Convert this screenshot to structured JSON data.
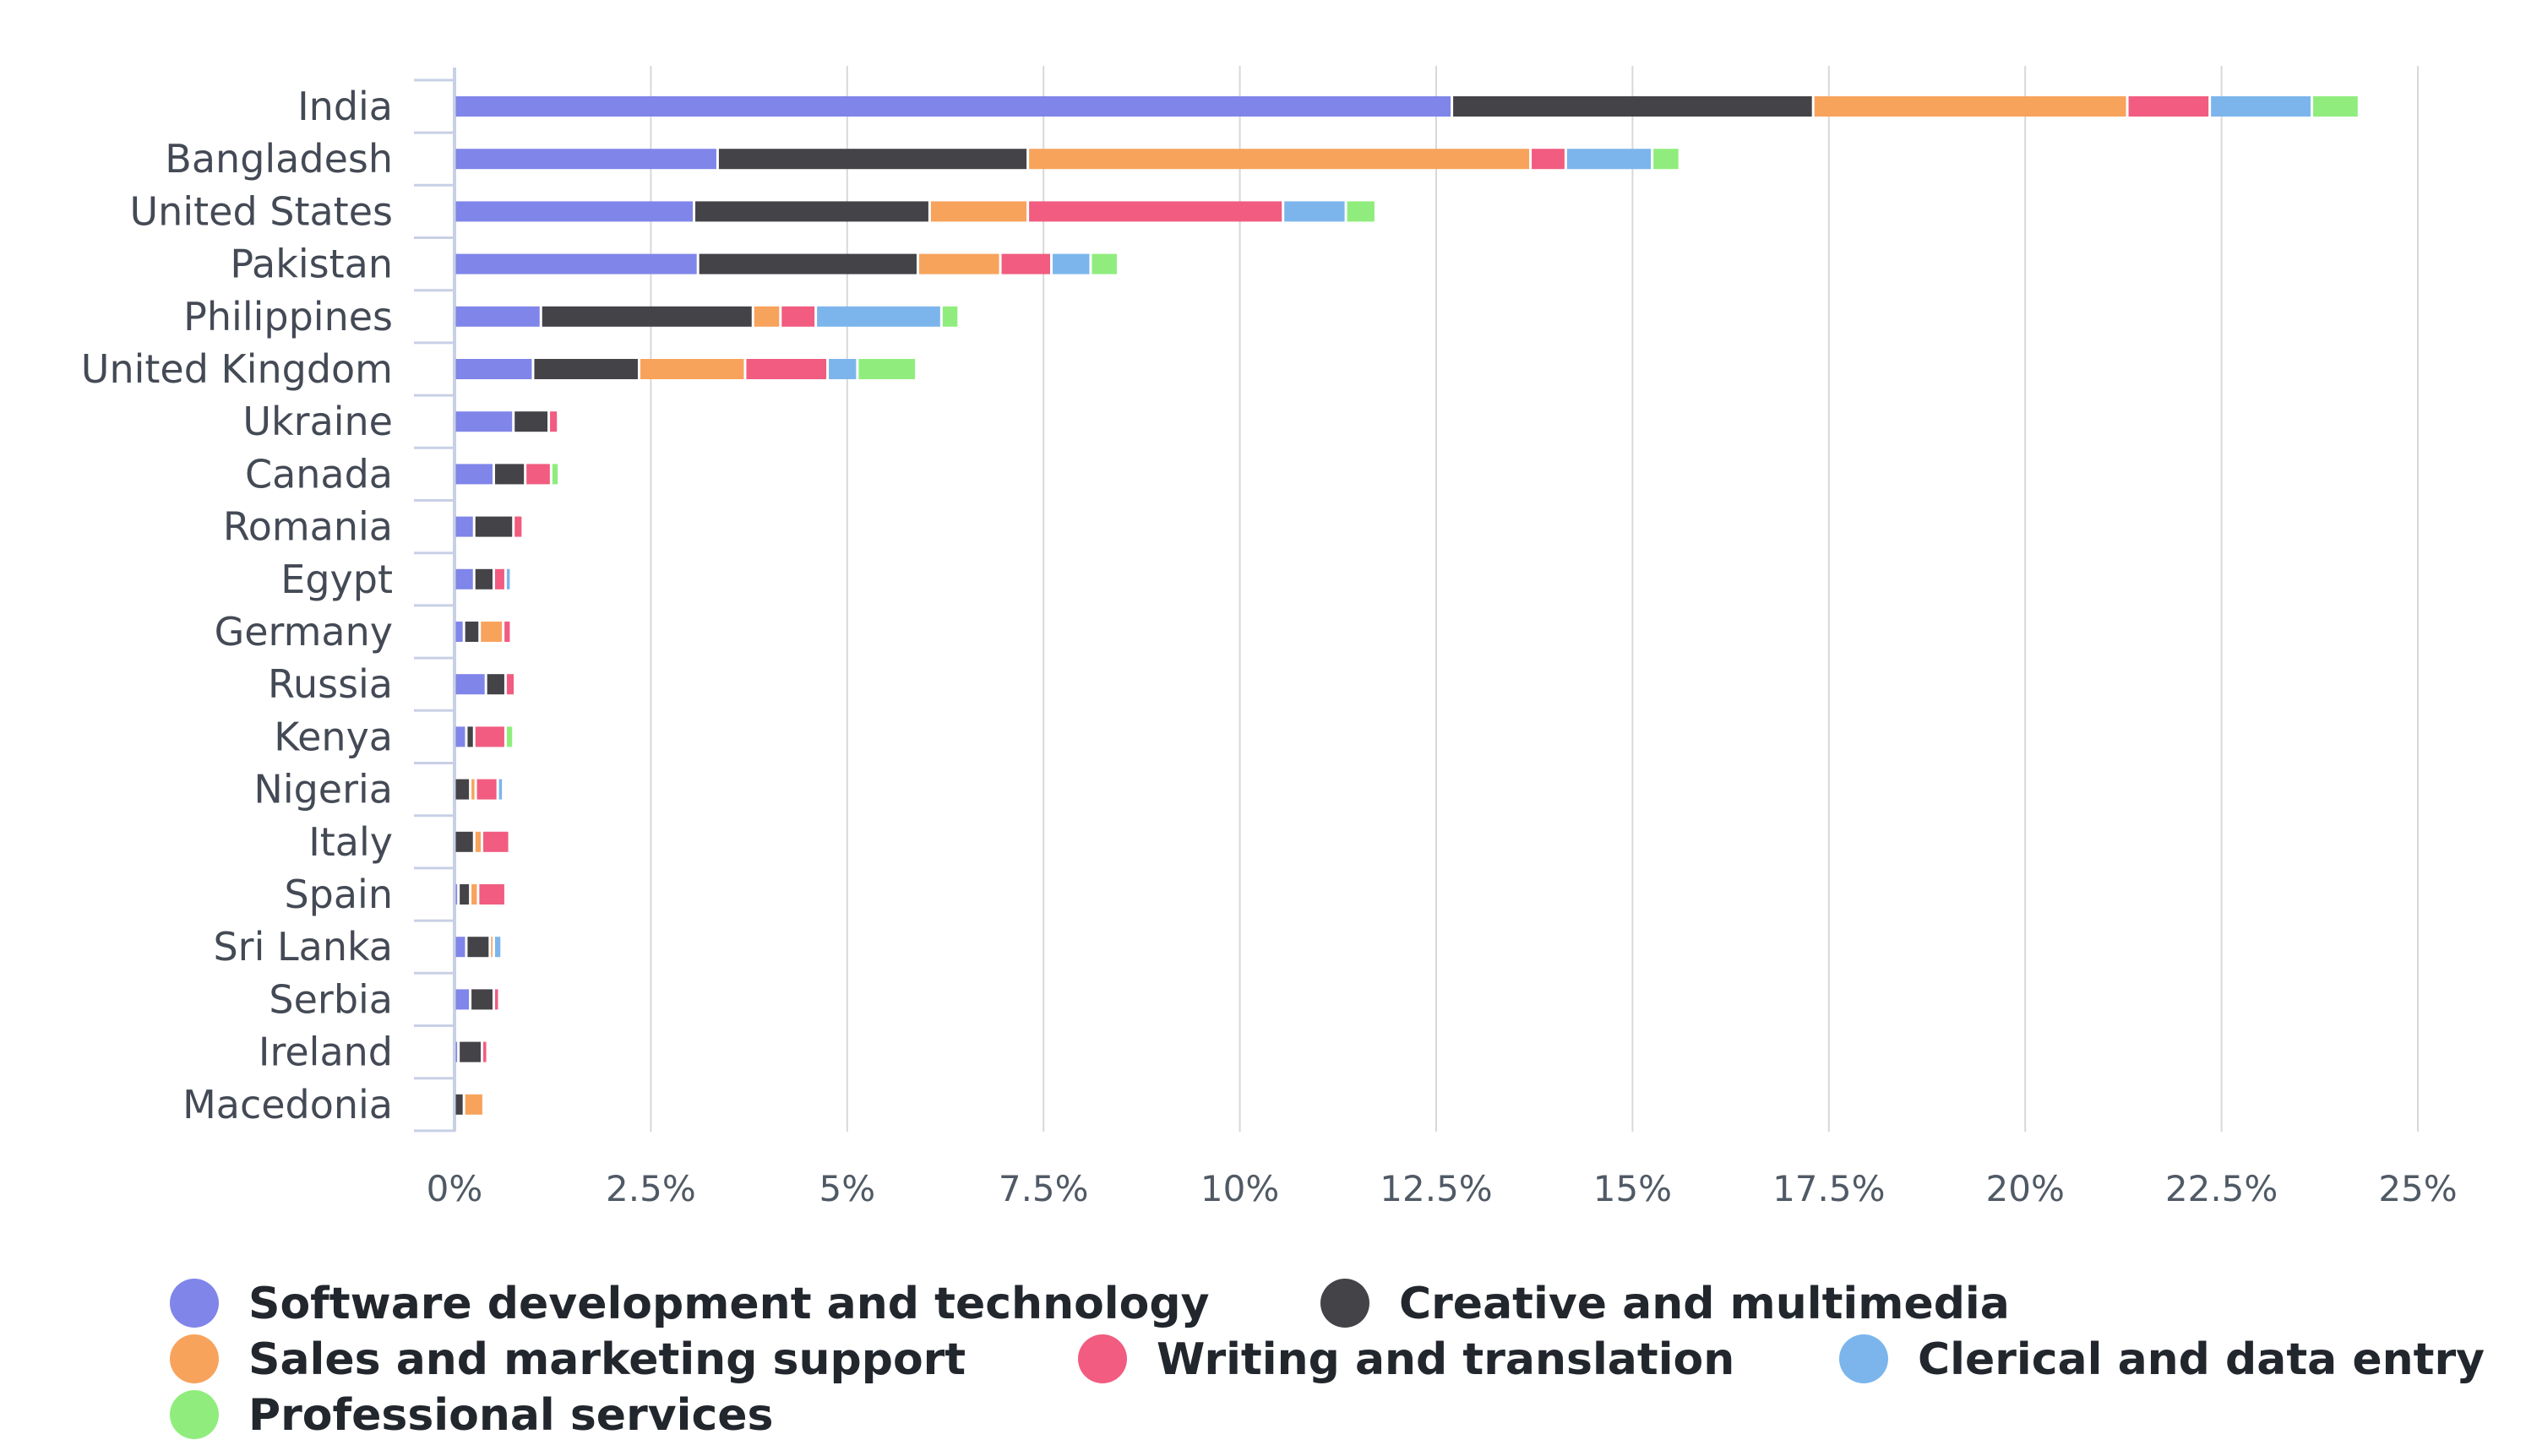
{
  "chart_data": {
    "type": "bar",
    "orientation": "horizontal",
    "stacked": true,
    "title": "",
    "xlabel": "",
    "ylabel": "",
    "xlim": [
      0,
      25
    ],
    "x_ticks": [
      0,
      2.5,
      5,
      7.5,
      10,
      12.5,
      15,
      17.5,
      20,
      22.5,
      25
    ],
    "x_tick_labels": [
      "0%",
      "2.5%",
      "5%",
      "7.5%",
      "10%",
      "12.5%",
      "15%",
      "17.5%",
      "20%",
      "22.5%",
      "25%"
    ],
    "grid": "vertical",
    "legend_position": "bottom",
    "categories": [
      "India",
      "Bangladesh",
      "United States",
      "Pakistan",
      "Philippines",
      "United Kingdom",
      "Ukraine",
      "Canada",
      "Romania",
      "Egypt",
      "Germany",
      "Russia",
      "Kenya",
      "Nigeria",
      "Italy",
      "Spain",
      "Sri Lanka",
      "Serbia",
      "Ireland",
      "Macedonia"
    ],
    "series": [
      {
        "name": "Software development and technology",
        "color": "#8085e9",
        "values": [
          12.7,
          3.35,
          3.05,
          3.1,
          1.1,
          1.0,
          0.75,
          0.5,
          0.25,
          0.25,
          0.12,
          0.4,
          0.15,
          0.0,
          0.0,
          0.05,
          0.15,
          0.2,
          0.05,
          0.0
        ]
      },
      {
        "name": "Creative and multimedia",
        "color": "#434348",
        "values": [
          4.6,
          3.95,
          3.0,
          2.8,
          2.7,
          1.35,
          0.45,
          0.4,
          0.5,
          0.25,
          0.2,
          0.25,
          0.1,
          0.2,
          0.25,
          0.15,
          0.3,
          0.3,
          0.3,
          0.12
        ]
      },
      {
        "name": "Sales and marketing support",
        "color": "#f7a35c",
        "values": [
          4.0,
          6.4,
          1.25,
          1.05,
          0.35,
          1.35,
          0.0,
          0.0,
          0.0,
          0.0,
          0.3,
          0.0,
          0.0,
          0.07,
          0.1,
          0.1,
          0.05,
          0.0,
          0.0,
          0.25
        ]
      },
      {
        "name": "Writing and translation",
        "color": "#f15c80",
        "values": [
          1.05,
          0.45,
          3.25,
          0.65,
          0.45,
          1.05,
          0.12,
          0.33,
          0.12,
          0.15,
          0.1,
          0.12,
          0.4,
          0.28,
          0.35,
          0.35,
          0.0,
          0.07,
          0.07,
          0.0
        ]
      },
      {
        "name": "Clerical and data entry",
        "color": "#7cb5ec",
        "values": [
          1.3,
          1.1,
          0.8,
          0.5,
          1.6,
          0.38,
          0.0,
          0.0,
          0.0,
          0.07,
          0.0,
          0.0,
          0.0,
          0.07,
          0.0,
          0.0,
          0.1,
          0.0,
          0.0,
          0.0
        ]
      },
      {
        "name": "Professional services",
        "color": "#90ed7d",
        "values": [
          0.6,
          0.35,
          0.38,
          0.35,
          0.22,
          0.75,
          0.0,
          0.1,
          0.0,
          0.0,
          0.0,
          0.0,
          0.1,
          0.0,
          0.0,
          0.0,
          0.0,
          0.0,
          0.0,
          0.0
        ]
      }
    ]
  }
}
